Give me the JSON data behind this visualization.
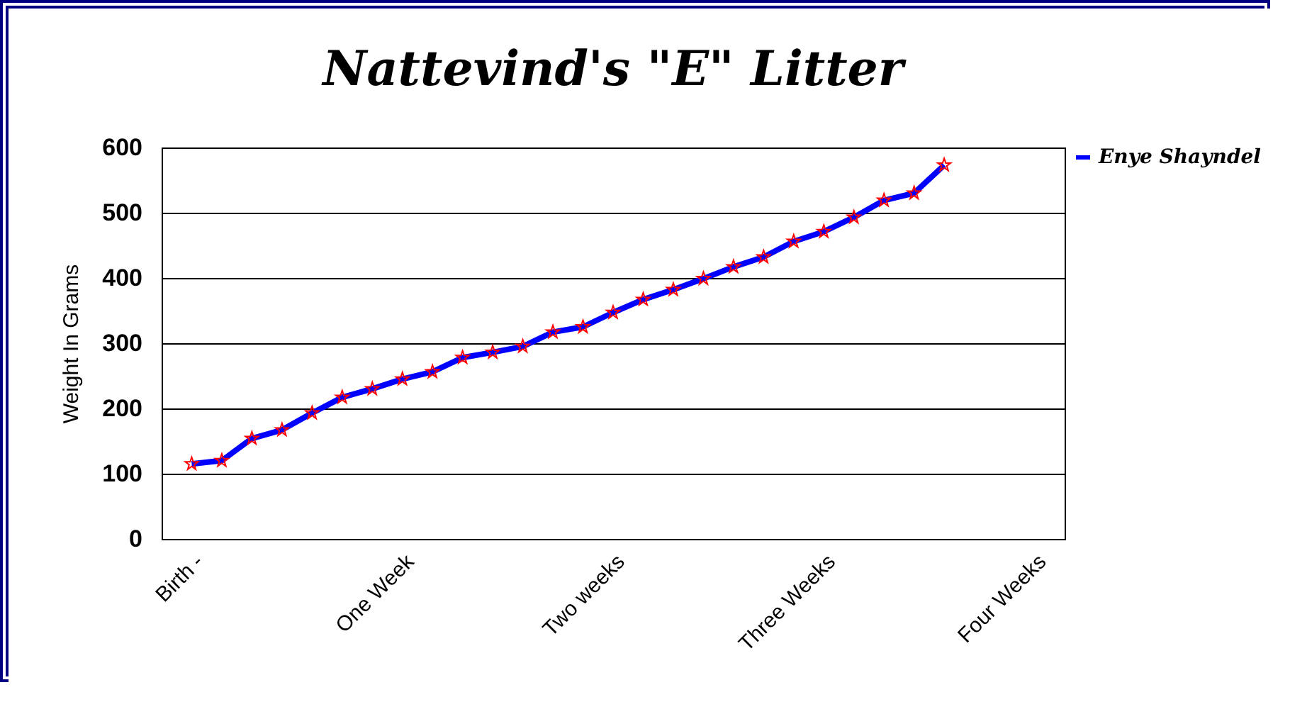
{
  "chart_data": {
    "type": "line",
    "title": "Nattevind's \"E\" Litter",
    "ylabel": "Weight In Grams",
    "categories": [
      "Birth -",
      null,
      null,
      null,
      null,
      null,
      null,
      "One Week",
      null,
      null,
      null,
      null,
      null,
      null,
      "Two weeks",
      null,
      null,
      null,
      null,
      null,
      null,
      "Three Weeks",
      null,
      null,
      null,
      null,
      null,
      null,
      "Four Weeks"
    ],
    "series": [
      {
        "name": "Enye Shayndel",
        "color": "#0000ff",
        "values": [
          115,
          120,
          154,
          167,
          193,
          217,
          230,
          245,
          256,
          278,
          286,
          295,
          317,
          325,
          347,
          367,
          382,
          399,
          417,
          432,
          456,
          471,
          493,
          519,
          530,
          573,
          null,
          null,
          null
        ]
      }
    ],
    "ylim": [
      0,
      600
    ],
    "yticks": [
      0,
      100,
      200,
      300,
      400,
      500,
      600
    ],
    "grid": "y",
    "legend": "right",
    "marker": "star",
    "line_style": "solid"
  }
}
